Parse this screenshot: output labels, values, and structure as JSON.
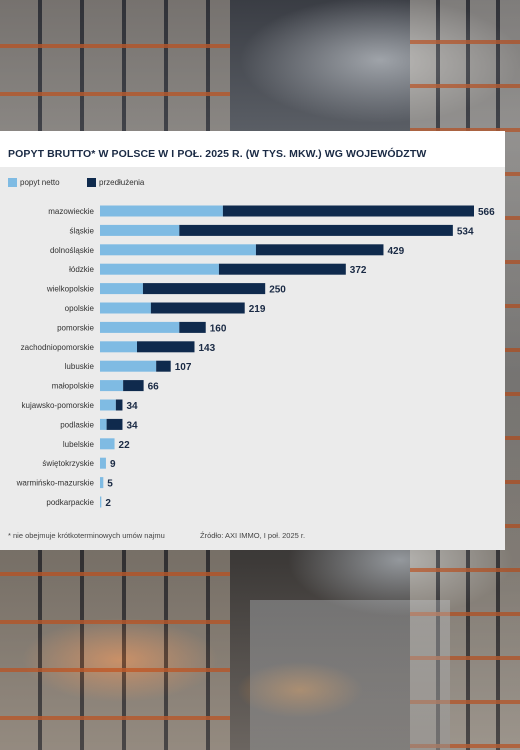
{
  "colors": {
    "netto": "#7fbbe3",
    "przedluzenia": "#0f2a4d"
  },
  "chart_data": {
    "type": "bar",
    "orientation": "horizontal",
    "stacked": true,
    "title": "POPYT BRUTTO* W POLSCE W I POŁ. 2025 R. (W TYS. MKW.) WG WOJEWÓDZTW",
    "legend_position": "top-left",
    "grid": false,
    "xlim": [
      0,
      600
    ],
    "categories": [
      "mazowieckie",
      "śląskie",
      "dolnośląskie",
      "łódzkie",
      "wielkopolskie",
      "opolskie",
      "pomorskie",
      "zachodniopomorskie",
      "lubuskie",
      "małopolskie",
      "kujawsko-pomorskie",
      "podlaskie",
      "lubelskie",
      "świętokrzyskie",
      "warmińsko-mazurskie",
      "podkarpackie"
    ],
    "series": [
      {
        "name": "popyt netto",
        "values": [
          186,
          120,
          236,
          180,
          65,
          77,
          120,
          56,
          85,
          35,
          24,
          10,
          22,
          9,
          5,
          2
        ]
      },
      {
        "name": "przedłużenia",
        "values": [
          380,
          414,
          193,
          192,
          185,
          142,
          40,
          87,
          22,
          31,
          10,
          24,
          0,
          0,
          0,
          0
        ]
      }
    ],
    "totals": [
      "566",
      "534",
      "429",
      "372",
      "250",
      "219",
      "160",
      "143",
      "107",
      "66",
      "34",
      "34",
      "22",
      "9",
      "5",
      "2"
    ]
  },
  "footnotes": {
    "asterisk": "* nie obejmuje krótkoterminowych umów najmu",
    "source": "Źródło: AXI IMMO, I poł. 2025 r."
  }
}
